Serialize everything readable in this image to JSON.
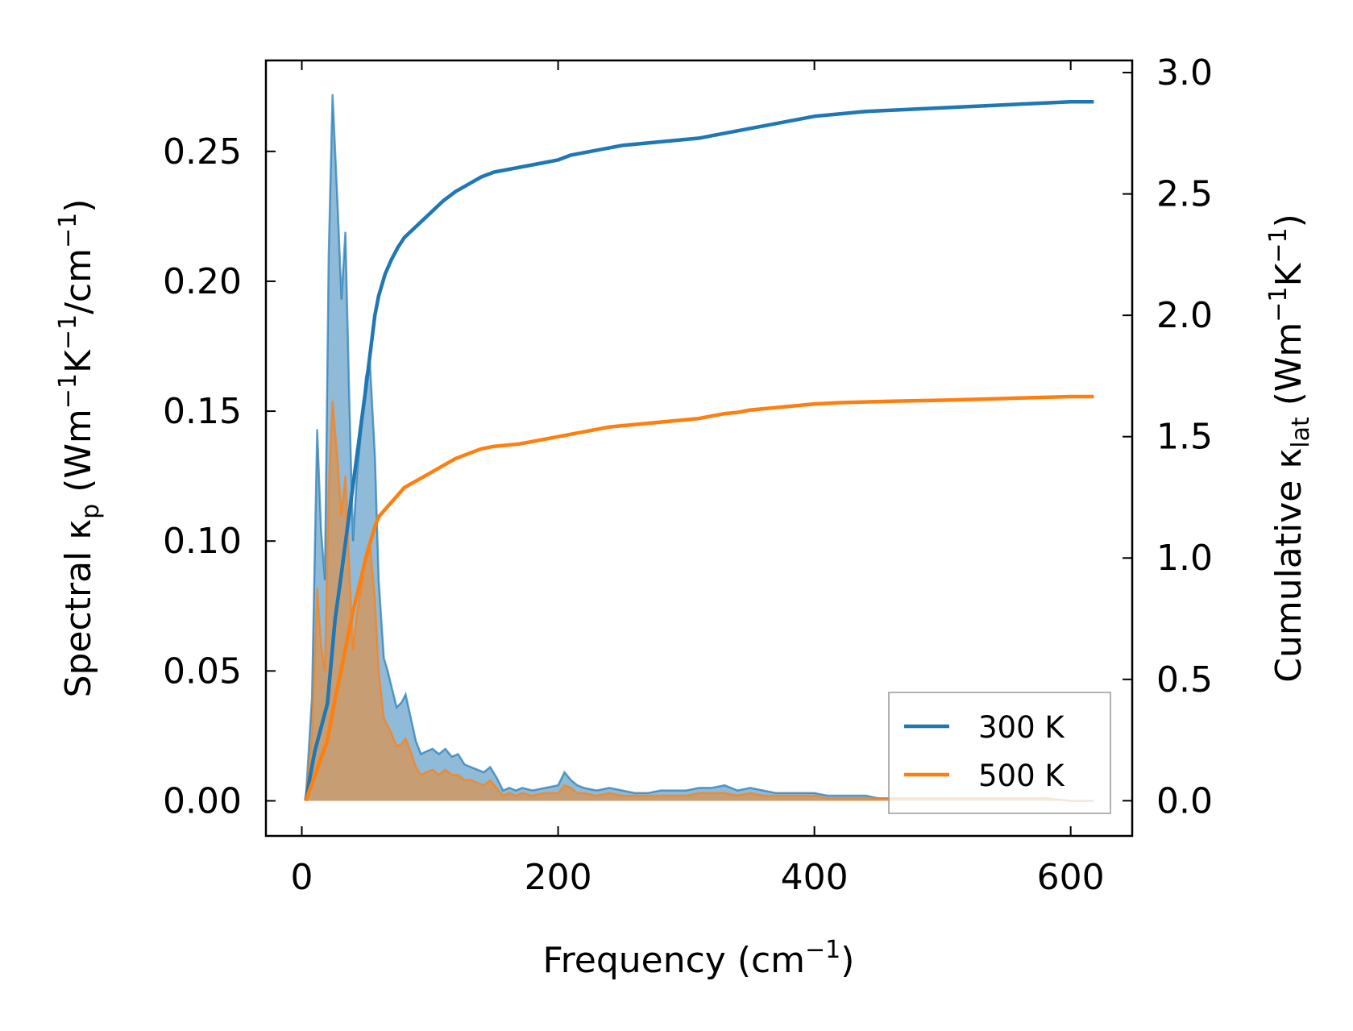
{
  "chart_data": {
    "type": "line",
    "xlabel": {
      "base": "Frequency (cm",
      "sup": "−1",
      "tail": ")"
    },
    "ylabel_left": {
      "pre": "Spectral κ",
      "sub": "p",
      "mid1": " (Wm",
      "sup1": "−1",
      "mid2": "K",
      "sup2": "−1",
      "mid3": "/cm",
      "sup3": "−1",
      "tail": ")"
    },
    "ylabel_right": {
      "pre": "Cumulative κ",
      "sub": "lat",
      "mid1": " (Wm",
      "sup1": "−1",
      "mid2": "K",
      "sup2": "−1",
      "tail": ")"
    },
    "xlim": [
      -28,
      648
    ],
    "ylim_left": [
      -0.0135,
      0.285
    ],
    "ylim_right": [
      -0.145,
      3.05
    ],
    "xticks": [
      0,
      200,
      400,
      600
    ],
    "xtick_labels": [
      "0",
      "200",
      "400",
      "600"
    ],
    "yticks_left": [
      0.0,
      0.05,
      0.1,
      0.15,
      0.2,
      0.25
    ],
    "ytick_labels_left": [
      "0.00",
      "0.05",
      "0.10",
      "0.15",
      "0.20",
      "0.25"
    ],
    "yticks_right": [
      0.0,
      0.5,
      1.0,
      1.5,
      2.0,
      2.5,
      3.0
    ],
    "ytick_labels_right": [
      "0.0",
      "0.5",
      "1.0",
      "1.5",
      "2.0",
      "2.5",
      "3.0"
    ],
    "grid": false,
    "legend_position": "lower-right",
    "colors": {
      "300K": "#1f77b4",
      "500K": "#ff7f0e"
    },
    "series": [
      {
        "name": "300 K",
        "color": "#1f77b4",
        "spectral": {
          "x": [
            3,
            8,
            12,
            15,
            18,
            21,
            24,
            26,
            28,
            31,
            34,
            37,
            40,
            43,
            47,
            50,
            53,
            57,
            60,
            64,
            67,
            70,
            74,
            78,
            81,
            85,
            89,
            93,
            97,
            102,
            107,
            112,
            117,
            122,
            127,
            132,
            137,
            142,
            147,
            152,
            157,
            162,
            167,
            172,
            180,
            190,
            200,
            205,
            210,
            215,
            220,
            230,
            240,
            250,
            260,
            270,
            280,
            290,
            300,
            310,
            320,
            330,
            340,
            350,
            360,
            370,
            380,
            390,
            400,
            410,
            420,
            430,
            440,
            450,
            460,
            480,
            500,
            520,
            540,
            560,
            580,
            600,
            618
          ],
          "y": [
            0.0,
            0.04,
            0.143,
            0.104,
            0.085,
            0.21,
            0.272,
            0.25,
            0.228,
            0.193,
            0.219,
            0.155,
            0.1,
            0.125,
            0.146,
            0.163,
            0.17,
            0.133,
            0.085,
            0.055,
            0.05,
            0.044,
            0.036,
            0.038,
            0.041,
            0.032,
            0.023,
            0.018,
            0.019,
            0.02,
            0.018,
            0.02,
            0.017,
            0.018,
            0.014,
            0.013,
            0.012,
            0.011,
            0.013,
            0.009,
            0.004,
            0.005,
            0.004,
            0.005,
            0.004,
            0.005,
            0.006,
            0.011,
            0.008,
            0.006,
            0.005,
            0.004,
            0.005,
            0.004,
            0.003,
            0.003,
            0.004,
            0.004,
            0.004,
            0.005,
            0.005,
            0.006,
            0.004,
            0.005,
            0.004,
            0.003,
            0.003,
            0.003,
            0.003,
            0.002,
            0.002,
            0.002,
            0.002,
            0.001,
            0.001,
            0.001,
            0.001,
            0.001,
            0.001,
            0.001,
            0.001,
            0.0,
            0.0
          ]
        },
        "cumulative": {
          "x": [
            3,
            10,
            20,
            26,
            30,
            40,
            50,
            57,
            60,
            65,
            70,
            75,
            80,
            90,
            100,
            110,
            120,
            130,
            140,
            150,
            160,
            170,
            180,
            190,
            200,
            210,
            220,
            230,
            240,
            250,
            260,
            270,
            280,
            290,
            300,
            310,
            320,
            330,
            340,
            350,
            360,
            370,
            380,
            390,
            400,
            420,
            440,
            460,
            480,
            500,
            520,
            540,
            560,
            580,
            600,
            618
          ],
          "y": [
            0.0,
            0.2,
            0.4,
            0.75,
            0.9,
            1.3,
            1.7,
            2.0,
            2.08,
            2.17,
            2.23,
            2.28,
            2.32,
            2.37,
            2.42,
            2.47,
            2.51,
            2.54,
            2.57,
            2.59,
            2.6,
            2.61,
            2.62,
            2.63,
            2.64,
            2.66,
            2.67,
            2.68,
            2.69,
            2.7,
            2.705,
            2.71,
            2.715,
            2.72,
            2.725,
            2.73,
            2.74,
            2.75,
            2.76,
            2.77,
            2.78,
            2.79,
            2.8,
            2.81,
            2.82,
            2.83,
            2.84,
            2.845,
            2.85,
            2.855,
            2.86,
            2.865,
            2.87,
            2.875,
            2.88,
            2.88
          ]
        }
      },
      {
        "name": "500 K",
        "color": "#ff7f0e",
        "spectral": {
          "x": [
            3,
            8,
            12,
            15,
            18,
            21,
            24,
            26,
            28,
            31,
            34,
            37,
            40,
            43,
            47,
            50,
            53,
            57,
            60,
            64,
            67,
            70,
            74,
            78,
            81,
            85,
            89,
            93,
            97,
            102,
            107,
            112,
            117,
            122,
            127,
            132,
            137,
            142,
            147,
            152,
            157,
            162,
            167,
            172,
            180,
            190,
            200,
            205,
            210,
            215,
            220,
            230,
            240,
            250,
            260,
            270,
            280,
            290,
            300,
            310,
            320,
            330,
            340,
            350,
            360,
            370,
            380,
            390,
            400,
            410,
            420,
            430,
            440,
            450,
            460,
            480,
            500,
            520,
            540,
            560,
            580,
            600,
            618
          ],
          "y": [
            0.0,
            0.025,
            0.082,
            0.06,
            0.05,
            0.12,
            0.154,
            0.142,
            0.13,
            0.11,
            0.125,
            0.09,
            0.058,
            0.072,
            0.084,
            0.095,
            0.1,
            0.078,
            0.05,
            0.032,
            0.029,
            0.026,
            0.021,
            0.022,
            0.024,
            0.019,
            0.013,
            0.01,
            0.011,
            0.012,
            0.01,
            0.012,
            0.01,
            0.01,
            0.008,
            0.008,
            0.007,
            0.006,
            0.008,
            0.005,
            0.002,
            0.003,
            0.002,
            0.003,
            0.002,
            0.003,
            0.003,
            0.006,
            0.005,
            0.003,
            0.003,
            0.002,
            0.003,
            0.002,
            0.002,
            0.002,
            0.002,
            0.002,
            0.002,
            0.003,
            0.003,
            0.003,
            0.002,
            0.003,
            0.002,
            0.002,
            0.002,
            0.002,
            0.002,
            0.001,
            0.001,
            0.001,
            0.001,
            0.001,
            0.001,
            0.001,
            0.001,
            0.001,
            0.001,
            0.001,
            0.001,
            0.0,
            0.0
          ]
        },
        "cumulative": {
          "x": [
            3,
            10,
            20,
            26,
            30,
            40,
            50,
            57,
            60,
            65,
            70,
            75,
            80,
            90,
            100,
            110,
            120,
            130,
            140,
            150,
            160,
            170,
            180,
            190,
            200,
            210,
            220,
            230,
            240,
            250,
            260,
            270,
            280,
            290,
            300,
            310,
            320,
            330,
            340,
            350,
            360,
            370,
            380,
            390,
            400,
            420,
            440,
            460,
            480,
            500,
            520,
            540,
            560,
            580,
            600,
            618
          ],
          "y": [
            0.0,
            0.1,
            0.25,
            0.42,
            0.52,
            0.78,
            1.0,
            1.13,
            1.17,
            1.2,
            1.23,
            1.26,
            1.29,
            1.32,
            1.35,
            1.38,
            1.41,
            1.43,
            1.45,
            1.46,
            1.465,
            1.47,
            1.48,
            1.49,
            1.5,
            1.51,
            1.52,
            1.53,
            1.54,
            1.545,
            1.55,
            1.555,
            1.56,
            1.565,
            1.57,
            1.575,
            1.585,
            1.595,
            1.6,
            1.61,
            1.615,
            1.62,
            1.625,
            1.63,
            1.635,
            1.64,
            1.643,
            1.646,
            1.648,
            1.65,
            1.653,
            1.656,
            1.659,
            1.662,
            1.665,
            1.665
          ]
        }
      }
    ]
  }
}
